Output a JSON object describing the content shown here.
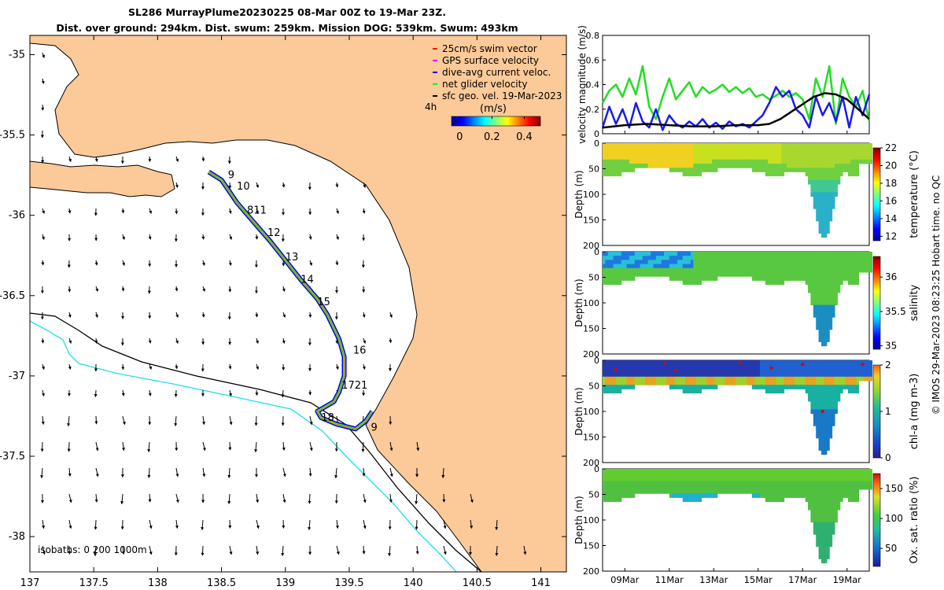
{
  "title": {
    "line1": "SL286 MurrayPlume20230225 08-Mar 00Z to 19-Mar 23Z.",
    "line2": "Dist. over ground: 294km. Dist. swum: 259km. Mission DOG: 539km. Swum: 493km"
  },
  "map": {
    "xticks": [
      "137",
      "137.5",
      "138",
      "138.5",
      "139",
      "139.5",
      "140",
      "140.5",
      "141"
    ],
    "yticks": [
      "-35",
      "-35.5",
      "-36",
      "-36.5",
      "-37",
      "-37.5",
      "-38"
    ],
    "xlim": [
      137,
      141.2
    ],
    "ylim": [
      -38.22,
      -34.88
    ],
    "isobath_label": "isobaths: 0   200  1000m",
    "track_labels": [
      "9",
      "10",
      "811",
      "12",
      "13",
      "14",
      "15",
      "16",
      "1721",
      "18",
      "9"
    ],
    "legend": {
      "items": [
        {
          "label": "25cm/s swim vector",
          "color": "#dd2200"
        },
        {
          "label": "GPS surface velocity",
          "color": "#ee00ee"
        },
        {
          "label": "dive-avg current veloc.",
          "color": "#0000ee"
        },
        {
          "label": "net glider velocity",
          "color": "#22ee22"
        },
        {
          "label": "sfc geo. vel. 19-Mar-2023",
          "color": "#000000"
        }
      ],
      "time_tag": "4h",
      "colorbar_title": "(m/s)",
      "colorbar_ticks": [
        "0",
        "0.2",
        "0.4"
      ]
    }
  },
  "chart_data": [
    {
      "type": "line",
      "ylabel": "velocity magnitude (m/s)",
      "ylim": [
        0,
        0.8
      ],
      "yticks": [
        "0",
        "0.2",
        "0.4",
        "0.6",
        "0.8"
      ],
      "xlim_days": [
        8.0,
        20.0
      ],
      "series": [
        {
          "name": "net glider velocity",
          "color": "#22dd22",
          "x": [
            8.0,
            8.3,
            8.6,
            8.9,
            9.2,
            9.5,
            9.8,
            10.1,
            10.4,
            10.7,
            11.0,
            11.3,
            11.6,
            11.9,
            12.2,
            12.5,
            12.8,
            13.1,
            13.4,
            13.7,
            14.0,
            14.3,
            14.6,
            14.9,
            15.2,
            15.5,
            15.8,
            16.1,
            16.4,
            16.7,
            17.0,
            17.3,
            17.6,
            17.9,
            18.2,
            18.5,
            18.8,
            19.1,
            19.4,
            19.7,
            20.0
          ],
          "values": [
            0.25,
            0.35,
            0.4,
            0.3,
            0.45,
            0.32,
            0.55,
            0.22,
            0.12,
            0.3,
            0.45,
            0.28,
            0.35,
            0.42,
            0.3,
            0.38,
            0.33,
            0.36,
            0.4,
            0.34,
            0.38,
            0.33,
            0.37,
            0.3,
            0.32,
            0.28,
            0.31,
            0.35,
            0.3,
            0.33,
            0.28,
            0.12,
            0.45,
            0.3,
            0.55,
            0.08,
            0.45,
            0.3,
            0.22,
            0.35,
            0.1
          ]
        },
        {
          "name": "dive-avg current veloc.",
          "color": "#1a1aee",
          "x": [
            8.0,
            8.3,
            8.6,
            8.9,
            9.2,
            9.5,
            9.8,
            10.1,
            10.4,
            10.7,
            11.0,
            11.3,
            11.6,
            11.9,
            12.2,
            12.5,
            12.8,
            13.1,
            13.4,
            13.7,
            14.0,
            14.3,
            14.6,
            14.9,
            15.2,
            15.5,
            15.8,
            16.1,
            16.4,
            16.7,
            17.0,
            17.3,
            17.6,
            17.9,
            18.2,
            18.5,
            18.8,
            19.1,
            19.4,
            19.7,
            20.0
          ],
          "values": [
            0.05,
            0.22,
            0.08,
            0.2,
            0.05,
            0.25,
            0.1,
            0.05,
            0.2,
            0.03,
            0.15,
            0.08,
            0.05,
            0.1,
            0.06,
            0.12,
            0.05,
            0.09,
            0.04,
            0.1,
            0.06,
            0.08,
            0.05,
            0.1,
            0.15,
            0.25,
            0.38,
            0.3,
            0.35,
            0.2,
            0.15,
            0.05,
            0.3,
            0.15,
            0.25,
            0.1,
            0.3,
            0.05,
            0.3,
            0.15,
            0.32
          ]
        },
        {
          "name": "sfc geo. vel.",
          "color": "#000000",
          "x": [
            8.0,
            9.0,
            10.0,
            11.0,
            12.0,
            13.0,
            14.0,
            15.0,
            15.5,
            16.0,
            16.5,
            17.0,
            17.5,
            18.0,
            18.5,
            19.0,
            19.5,
            20.0
          ],
          "values": [
            0.05,
            0.07,
            0.08,
            0.07,
            0.06,
            0.06,
            0.07,
            0.07,
            0.08,
            0.12,
            0.18,
            0.24,
            0.3,
            0.33,
            0.32,
            0.28,
            0.2,
            0.12
          ]
        }
      ]
    },
    {
      "type": "heatmap",
      "ylabel": "Depth (m)",
      "colorbar_label": "temperature (°C)",
      "ylim": [
        200,
        0
      ],
      "yticks": [
        "0",
        "50",
        "100",
        "150",
        "200"
      ],
      "colorbar_ticks": [
        "12",
        "14",
        "16",
        "18",
        "20",
        "22"
      ],
      "clim": [
        11.5,
        22
      ]
    },
    {
      "type": "heatmap",
      "ylabel": "Depth (m)",
      "colorbar_label": "salinity",
      "ylim": [
        200,
        0
      ],
      "yticks": [
        "0",
        "50",
        "100",
        "150",
        "200"
      ],
      "colorbar_ticks": [
        "35",
        "35.5",
        "36"
      ],
      "clim": [
        34.95,
        36.3
      ]
    },
    {
      "type": "heatmap",
      "ylabel": "Depth (m)",
      "colorbar_label": "chl-a (mg m-3)",
      "ylim": [
        200,
        0
      ],
      "yticks": [
        "0",
        "50",
        "100",
        "150",
        "200"
      ],
      "colorbar_ticks": [
        "0",
        "1",
        "2"
      ],
      "clim": [
        0,
        2
      ]
    },
    {
      "type": "heatmap",
      "ylabel": "Depth (m)",
      "colorbar_label": "Ox. sat. ratio (%)",
      "ylim": [
        200,
        0
      ],
      "yticks": [
        "0",
        "50",
        "100",
        "150",
        "200"
      ],
      "colorbar_ticks": [
        "50",
        "100",
        "150"
      ],
      "clim": [
        20,
        175
      ],
      "xticks": [
        "09Mar",
        "11Mar",
        "13Mar",
        "15Mar",
        "17Mar",
        "19Mar"
      ]
    }
  ],
  "credit": "© IMOS 29-Mar-2023 08:23:25 Hobart time. no QC"
}
